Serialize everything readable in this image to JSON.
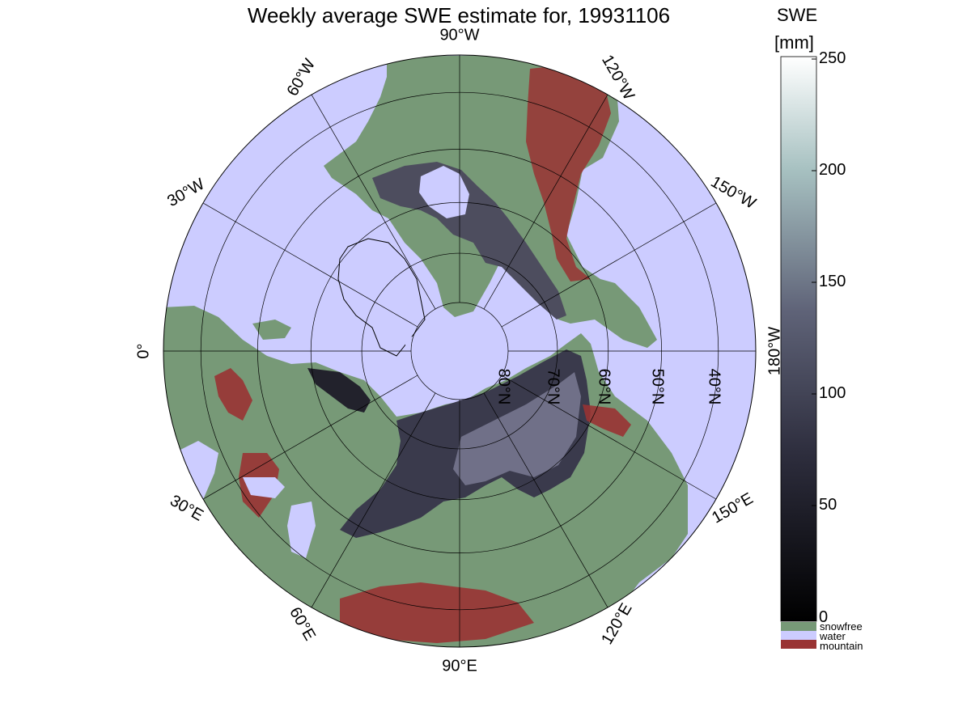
{
  "title": "Weekly average SWE estimate for, 19931106",
  "map": {
    "projection": "north-polar-stereographic",
    "longitude_labels": [
      {
        "text": "90°W",
        "lon": -90
      },
      {
        "text": "120°W",
        "lon": -120
      },
      {
        "text": "150°W",
        "lon": -150
      },
      {
        "text": "180°W",
        "lon": 180
      },
      {
        "text": "150°E",
        "lon": 150
      },
      {
        "text": "120°E",
        "lon": 120
      },
      {
        "text": "90°E",
        "lon": 90
      },
      {
        "text": "60°E",
        "lon": 60
      },
      {
        "text": "30°E",
        "lon": 30
      },
      {
        "text": "0°",
        "lon": 0
      },
      {
        "text": "30°W",
        "lon": -30
      },
      {
        "text": "60°W",
        "lon": -60
      }
    ],
    "latitude_labels": [
      {
        "text": "80°N",
        "lat": 80
      },
      {
        "text": "70°N",
        "lat": 70
      },
      {
        "text": "60°N",
        "lat": 60
      },
      {
        "text": "50°N",
        "lat": 50
      },
      {
        "text": "40°N",
        "lat": 40
      }
    ]
  },
  "colorbar": {
    "title_line1": "SWE",
    "title_line2": "[mm]",
    "ticks": [
      "250",
      "200",
      "150",
      "100",
      "50",
      "0"
    ],
    "tick_values": [
      250,
      200,
      150,
      100,
      50,
      0
    ],
    "range": [
      0,
      250
    ],
    "categories": [
      {
        "label": "snowfree",
        "color": "#779977"
      },
      {
        "label": "water",
        "color": "#ccccff"
      },
      {
        "label": "mountain",
        "color": "#993333"
      }
    ]
  },
  "colors": {
    "water": "#ccccff",
    "land": "#779977",
    "mountain": "#993333",
    "snow_low": "#000000",
    "snow_high": "#ffffff"
  }
}
